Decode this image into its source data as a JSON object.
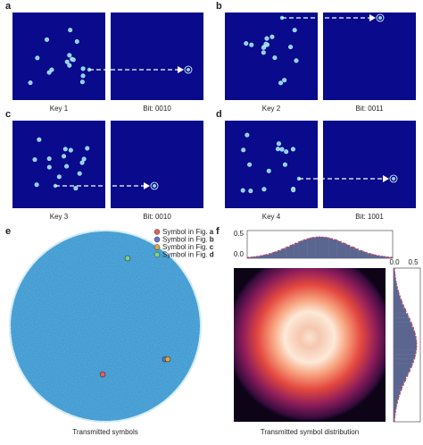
{
  "panels": [
    {
      "letter": "a",
      "left_label": "Key 1",
      "right_label": "Bit: 0010"
    },
    {
      "letter": "b",
      "left_label": "Key 2",
      "right_label": "Bit: 0011"
    },
    {
      "letter": "c",
      "left_label": "Key 3",
      "right_label": "Bit: 0010"
    },
    {
      "letter": "d",
      "left_label": "Key 4",
      "right_label": "Bit: 1001"
    }
  ],
  "panel_e": {
    "letter": "e",
    "caption": "Transmitted symbols",
    "legend": [
      {
        "text": "Symbol in Fig.",
        "fig": "a"
      },
      {
        "text": "Symbol in Fig.",
        "fig": "b"
      },
      {
        "text": "Symbol in Fig.",
        "fig": "c"
      },
      {
        "text": "Symbol in Fig.",
        "fig": "d"
      }
    ]
  },
  "panel_f": {
    "letter": "f",
    "caption": "Transmitted symbol distribution",
    "top_ticks": [
      "0.5",
      "0.0"
    ],
    "right_ticks": [
      "0.0",
      "0.5"
    ]
  }
}
